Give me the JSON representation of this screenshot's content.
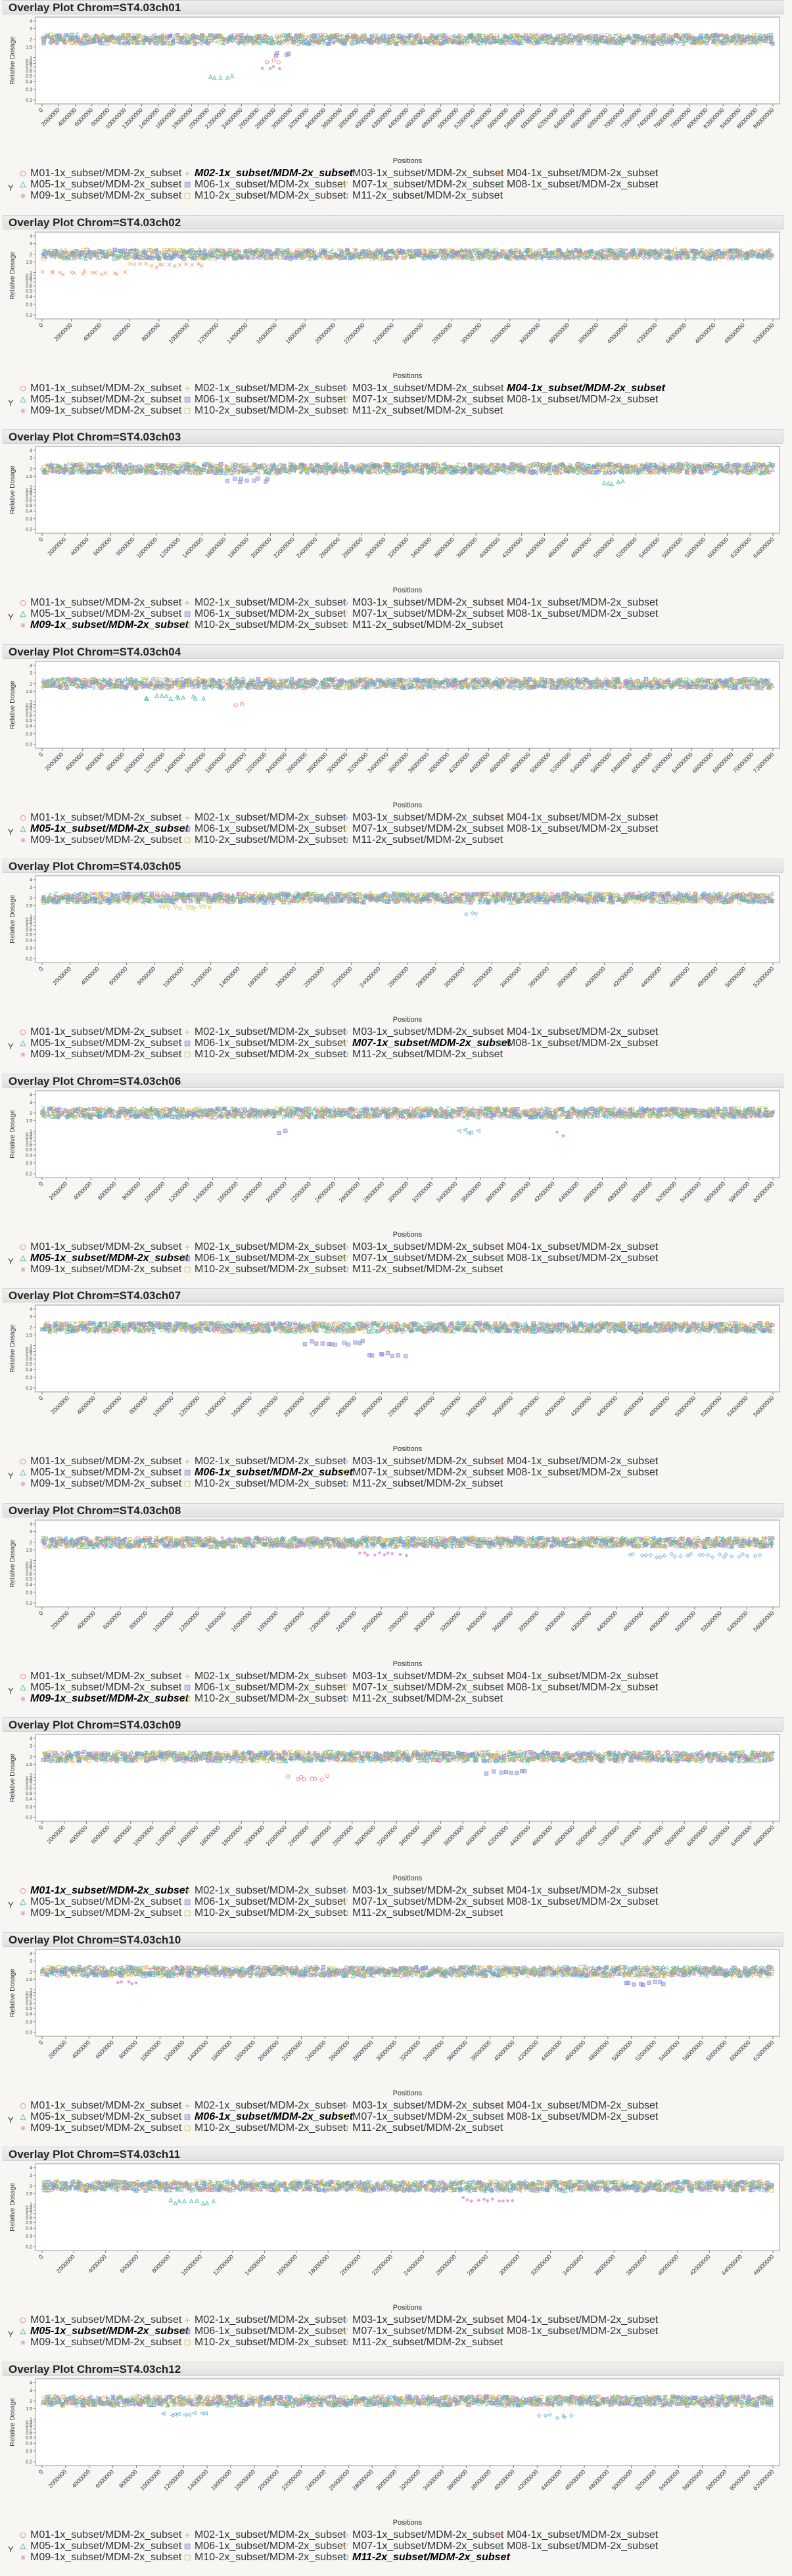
{
  "report": {
    "legend_y_label": "Y",
    "x_axis_label": "Positions",
    "y_axis_label": "Relative Dosage",
    "y_ticks": [
      "4",
      "3",
      "2",
      "1.5",
      "1",
      "0.9",
      "0.8",
      "0.7",
      "0.6",
      "0.5",
      "0.4",
      "0.3",
      "0.2"
    ]
  },
  "series": [
    {
      "name": "M01-1x_subset/MDM-2x_subset",
      "color": "#e87a7a",
      "marker": "circle"
    },
    {
      "name": "M02-1x_subset/MDM-2x_subset",
      "color": "#7fc86b",
      "marker": "plus"
    },
    {
      "name": "M03-1x_subset/MDM-2x_subset",
      "color": "#6fa7d8",
      "marker": "diamond"
    },
    {
      "name": "M04-1x_subset/MDM-2x_subset",
      "color": "#e8956a",
      "marker": "x"
    },
    {
      "name": "M05-1x_subset/MDM-2x_subset",
      "color": "#3fb6a6",
      "marker": "triangle"
    },
    {
      "name": "M06-1x_subset/MDM-2x_subset",
      "color": "#8a8fd6",
      "marker": "square"
    },
    {
      "name": "M07-1x_subset/MDM-2x_subset",
      "color": "#d7c54b",
      "marker": "tri-down"
    },
    {
      "name": "M08-1x_subset/MDM-2x_subset",
      "color": "#62bba0",
      "marker": "z"
    },
    {
      "name": "M09-1x_subset/MDM-2x_subset",
      "color": "#d98bd0",
      "marker": "star"
    },
    {
      "name": "M10-2x_subset/MDM-2x_subset",
      "color": "#c5c060",
      "marker": "square-open"
    },
    {
      "name": "M11-2x_subset/MDM-2x_subset",
      "color": "#5fa8d3",
      "marker": "tri-left"
    }
  ],
  "chart_data": [
    {
      "type": "scatter",
      "title": "Overlay Plot Chrom=ST4.03ch01",
      "xlabel": "Positions",
      "ylabel": "Relative Dosage",
      "y_scale": "log",
      "ylim": [
        0.2,
        4
      ],
      "xlim": [
        0,
        88000000
      ],
      "x_ticks": [
        "0",
        "2000000",
        "4000000",
        "6000000",
        "8000000",
        "10000000",
        "12000000",
        "14000000",
        "16000000",
        "18000000",
        "20000000",
        "22000000",
        "24000000",
        "26000000",
        "28000000",
        "30000000",
        "32000000",
        "34000000",
        "36000000",
        "38000000",
        "40000000",
        "42000000",
        "44000000",
        "46000000",
        "48000000",
        "50000000",
        "52000000",
        "54000000",
        "56000000",
        "58000000",
        "60000000",
        "62000000",
        "64000000",
        "66000000",
        "68000000",
        "70000000",
        "72000000",
        "74000000",
        "76000000",
        "78000000",
        "80000000",
        "82000000",
        "84000000",
        "86000000",
        "88000000"
      ],
      "highlighted_series": "M02-1x_subset/MDM-2x_subset",
      "typical_dosage": 2,
      "deviations": [
        {
          "series": "M05-1x_subset/MDM-2x_subset",
          "x_range": [
            20000000,
            23000000
          ],
          "y": 0.5
        },
        {
          "series": "M09-1x_subset/MDM-2x_subset",
          "x_range": [
            26000000,
            29000000
          ],
          "y": 0.7
        },
        {
          "series": "M01-1x_subset/MDM-2x_subset",
          "x_range": [
            27000000,
            29000000
          ],
          "y": 0.9
        },
        {
          "series": "M06-1x_subset/MDM-2x_subset",
          "x_range": [
            28000000,
            30000000
          ],
          "y": 1.1
        }
      ]
    },
    {
      "type": "scatter",
      "title": "Overlay Plot Chrom=ST4.03ch02",
      "xlabel": "Positions",
      "ylabel": "Relative Dosage",
      "y_scale": "log",
      "ylim": [
        0.2,
        4
      ],
      "xlim": [
        0,
        50000000
      ],
      "x_ticks": [
        "0",
        "2000000",
        "4000000",
        "6000000",
        "8000000",
        "10000000",
        "12000000",
        "14000000",
        "16000000",
        "18000000",
        "20000000",
        "22000000",
        "24000000",
        "26000000",
        "28000000",
        "30000000",
        "32000000",
        "34000000",
        "36000000",
        "38000000",
        "40000000",
        "42000000",
        "44000000",
        "46000000",
        "48000000",
        "50000000"
      ],
      "highlighted_series": "M04-1x_subset/MDM-2x_subset",
      "typical_dosage": 2,
      "deviations": [
        {
          "series": "M04-1x_subset/MDM-2x_subset",
          "x_range": [
            0,
            6000000
          ],
          "y": 1.0
        },
        {
          "series": "M04-1x_subset/MDM-2x_subset",
          "x_range": [
            6000000,
            11000000
          ],
          "y": 1.3
        }
      ]
    },
    {
      "type": "scatter",
      "title": "Overlay Plot Chrom=ST4.03ch03",
      "xlabel": "Positions",
      "ylabel": "Relative Dosage",
      "y_scale": "log",
      "ylim": [
        0.2,
        4
      ],
      "xlim": [
        0,
        64000000
      ],
      "x_ticks": [
        "0",
        "2000000",
        "4000000",
        "6000000",
        "8000000",
        "10000000",
        "12000000",
        "14000000",
        "16000000",
        "18000000",
        "20000000",
        "22000000",
        "24000000",
        "26000000",
        "28000000",
        "30000000",
        "32000000",
        "34000000",
        "36000000",
        "38000000",
        "40000000",
        "42000000",
        "44000000",
        "46000000",
        "48000000",
        "50000000",
        "52000000",
        "54000000",
        "56000000",
        "58000000",
        "60000000",
        "62000000",
        "64000000"
      ],
      "highlighted_series": "M09-1x_subset/MDM-2x_subset",
      "typical_dosage": 2,
      "deviations": [
        {
          "series": "M06-1x_subset/MDM-2x_subset",
          "x_range": [
            16000000,
            20000000
          ],
          "y": 1.3
        },
        {
          "series": "M05-1x_subset/MDM-2x_subset",
          "x_range": [
            49000000,
            51000000
          ],
          "y": 1.2
        }
      ]
    },
    {
      "type": "scatter",
      "title": "Overlay Plot Chrom=ST4.03ch04",
      "xlabel": "Positions",
      "ylabel": "Relative Dosage",
      "y_scale": "log",
      "ylim": [
        0.2,
        4
      ],
      "xlim": [
        0,
        72000000
      ],
      "x_ticks": [
        "0",
        "2000000",
        "4000000",
        "6000000",
        "8000000",
        "10000000",
        "12000000",
        "14000000",
        "16000000",
        "18000000",
        "20000000",
        "22000000",
        "24000000",
        "26000000",
        "28000000",
        "30000000",
        "32000000",
        "34000000",
        "36000000",
        "38000000",
        "40000000",
        "42000000",
        "44000000",
        "46000000",
        "48000000",
        "50000000",
        "52000000",
        "54000000",
        "56000000",
        "58000000",
        "60000000",
        "62000000",
        "64000000",
        "66000000",
        "68000000",
        "70000000",
        "72000000"
      ],
      "highlighted_series": "M05-1x_subset/MDM-2x_subset",
      "typical_dosage": 2,
      "deviations": [
        {
          "series": "M05-1x_subset/MDM-2x_subset",
          "x_range": [
            10000000,
            16000000
          ],
          "y": 1.2
        },
        {
          "series": "M01-1x_subset/MDM-2x_subset",
          "x_range": [
            19000000,
            20000000
          ],
          "y": 0.9
        }
      ]
    },
    {
      "type": "scatter",
      "title": "Overlay Plot Chrom=ST4.03ch05",
      "xlabel": "Positions",
      "ylabel": "Relative Dosage",
      "y_scale": "log",
      "ylim": [
        0.2,
        4
      ],
      "xlim": [
        0,
        52000000
      ],
      "x_ticks": [
        "0",
        "2000000",
        "4000000",
        "6000000",
        "8000000",
        "10000000",
        "12000000",
        "14000000",
        "16000000",
        "18000000",
        "20000000",
        "22000000",
        "24000000",
        "26000000",
        "28000000",
        "30000000",
        "32000000",
        "34000000",
        "36000000",
        "38000000",
        "40000000",
        "42000000",
        "44000000",
        "46000000",
        "48000000",
        "50000000",
        "52000000"
      ],
      "highlighted_series": "M07-1x_subset/MDM-2x_subset",
      "typical_dosage": 2,
      "deviations": [
        {
          "series": "M07-1x_subset/MDM-2x_subset",
          "x_range": [
            8000000,
            12000000
          ],
          "y": 1.4
        },
        {
          "series": "M03-1x_subset/MDM-2x_subset",
          "x_range": [
            30000000,
            31000000
          ],
          "y": 1.1
        }
      ]
    },
    {
      "type": "scatter",
      "title": "Overlay Plot Chrom=ST4.03ch06",
      "xlabel": "Positions",
      "ylabel": "Relative Dosage",
      "y_scale": "log",
      "ylim": [
        0.2,
        4
      ],
      "xlim": [
        0,
        60000000
      ],
      "x_ticks": [
        "0",
        "2000000",
        "4000000",
        "6000000",
        "8000000",
        "10000000",
        "12000000",
        "14000000",
        "16000000",
        "18000000",
        "20000000",
        "22000000",
        "24000000",
        "26000000",
        "28000000",
        "30000000",
        "32000000",
        "34000000",
        "36000000",
        "38000000",
        "40000000",
        "42000000",
        "44000000",
        "46000000",
        "48000000",
        "50000000",
        "52000000",
        "54000000",
        "56000000",
        "58000000",
        "60000000"
      ],
      "highlighted_series": "M05-1x_subset/MDM-2x_subset",
      "typical_dosage": 2,
      "deviations": [
        {
          "series": "M06-1x_subset/MDM-2x_subset",
          "x_range": [
            19000000,
            20000000
          ],
          "y": 1.0
        },
        {
          "series": "M11-2x_subset/MDM-2x_subset",
          "x_range": [
            34000000,
            36000000
          ],
          "y": 1.0
        },
        {
          "series": "M09-1x_subset/MDM-2x_subset",
          "x_range": [
            42000000,
            43000000
          ],
          "y": 0.9
        }
      ]
    },
    {
      "type": "scatter",
      "title": "Overlay Plot Chrom=ST4.03ch07",
      "xlabel": "Positions",
      "ylabel": "Relative Dosage",
      "y_scale": "log",
      "ylim": [
        0.2,
        4
      ],
      "xlim": [
        0,
        56000000
      ],
      "x_ticks": [
        "0",
        "2000000",
        "4000000",
        "6000000",
        "8000000",
        "10000000",
        "12000000",
        "14000000",
        "16000000",
        "18000000",
        "20000000",
        "22000000",
        "24000000",
        "26000000",
        "28000000",
        "30000000",
        "32000000",
        "34000000",
        "36000000",
        "38000000",
        "40000000",
        "42000000",
        "44000000",
        "46000000",
        "48000000",
        "50000000",
        "52000000",
        "54000000",
        "56000000"
      ],
      "highlighted_series": "M06-1x_subset/MDM-2x_subset",
      "typical_dosage": 2,
      "deviations": [
        {
          "series": "M06-1x_subset/MDM-2x_subset",
          "x_range": [
            20000000,
            25000000
          ],
          "y": 1.1
        },
        {
          "series": "M06-1x_subset/MDM-2x_subset",
          "x_range": [
            25000000,
            28000000
          ],
          "y": 0.7
        }
      ]
    },
    {
      "type": "scatter",
      "title": "Overlay Plot Chrom=ST4.03ch08",
      "xlabel": "Positions",
      "ylabel": "Relative Dosage",
      "y_scale": "log",
      "ylim": [
        0.2,
        4
      ],
      "xlim": [
        0,
        56000000
      ],
      "x_ticks": [
        "0",
        "2000000",
        "4000000",
        "6000000",
        "8000000",
        "10000000",
        "12000000",
        "14000000",
        "16000000",
        "18000000",
        "20000000",
        "22000000",
        "24000000",
        "26000000",
        "28000000",
        "30000000",
        "32000000",
        "34000000",
        "36000000",
        "38000000",
        "40000000",
        "42000000",
        "44000000",
        "46000000",
        "48000000",
        "50000000",
        "52000000",
        "54000000",
        "56000000"
      ],
      "highlighted_series": "M09-1x_subset/MDM-2x_subset",
      "typical_dosage": 2,
      "deviations": [
        {
          "series": "M09-1x_subset/MDM-2x_subset",
          "x_range": [
            24000000,
            28000000
          ],
          "y": 1.3
        },
        {
          "series": "M03-1x_subset/MDM-2x_subset",
          "x_range": [
            45000000,
            55000000
          ],
          "y": 1.2
        }
      ]
    },
    {
      "type": "scatter",
      "title": "Overlay Plot Chrom=ST4.03ch09",
      "xlabel": "Positions",
      "ylabel": "Relative Dosage",
      "y_scale": "log",
      "ylim": [
        0.2,
        4
      ],
      "xlim": [
        0,
        66000000
      ],
      "x_ticks": [
        "0",
        "2000000",
        "4000000",
        "6000000",
        "8000000",
        "10000000",
        "12000000",
        "14000000",
        "16000000",
        "18000000",
        "20000000",
        "22000000",
        "24000000",
        "26000000",
        "28000000",
        "30000000",
        "32000000",
        "34000000",
        "36000000",
        "38000000",
        "40000000",
        "42000000",
        "44000000",
        "46000000",
        "48000000",
        "50000000",
        "52000000",
        "54000000",
        "56000000",
        "58000000",
        "60000000",
        "62000000",
        "64000000",
        "66000000"
      ],
      "highlighted_series": "M01-1x_subset/MDM-2x_subset",
      "typical_dosage": 2,
      "deviations": [
        {
          "series": "M01-1x_subset/MDM-2x_subset",
          "x_range": [
            22000000,
            26000000
          ],
          "y": 0.9
        },
        {
          "series": "M06-1x_subset/MDM-2x_subset",
          "x_range": [
            40000000,
            44000000
          ],
          "y": 1.1
        }
      ]
    },
    {
      "type": "scatter",
      "title": "Overlay Plot Chrom=ST4.03ch10",
      "xlabel": "Positions",
      "ylabel": "Relative Dosage",
      "y_scale": "log",
      "ylim": [
        0.2,
        4
      ],
      "xlim": [
        0,
        62000000
      ],
      "x_ticks": [
        "0",
        "2000000",
        "4000000",
        "6000000",
        "8000000",
        "10000000",
        "12000000",
        "14000000",
        "16000000",
        "18000000",
        "20000000",
        "22000000",
        "24000000",
        "26000000",
        "28000000",
        "30000000",
        "32000000",
        "34000000",
        "36000000",
        "38000000",
        "40000000",
        "42000000",
        "44000000",
        "46000000",
        "48000000",
        "50000000",
        "52000000",
        "54000000",
        "56000000",
        "58000000",
        "60000000",
        "62000000"
      ],
      "highlighted_series": "M06-1x_subset/MDM-2x_subset",
      "typical_dosage": 2,
      "deviations": [
        {
          "series": "M09-1x_subset/MDM-2x_subset",
          "x_range": [
            6000000,
            8000000
          ],
          "y": 1.3
        },
        {
          "series": "M06-1x_subset/MDM-2x_subset",
          "x_range": [
            49000000,
            53000000
          ],
          "y": 1.3
        }
      ]
    },
    {
      "type": "scatter",
      "title": "Overlay Plot Chrom=ST4.03ch11",
      "xlabel": "Positions",
      "ylabel": "Relative Dosage",
      "y_scale": "log",
      "ylim": [
        0.2,
        4
      ],
      "xlim": [
        0,
        46000000
      ],
      "x_ticks": [
        "0",
        "2000000",
        "4000000",
        "6000000",
        "8000000",
        "10000000",
        "12000000",
        "14000000",
        "16000000",
        "18000000",
        "20000000",
        "22000000",
        "24000000",
        "26000000",
        "28000000",
        "30000000",
        "32000000",
        "34000000",
        "36000000",
        "38000000",
        "40000000",
        "42000000",
        "44000000",
        "46000000"
      ],
      "highlighted_series": "M05-1x_subset/MDM-2x_subset",
      "typical_dosage": 2,
      "deviations": [
        {
          "series": "M05-1x_subset/MDM-2x_subset",
          "x_range": [
            8000000,
            11000000
          ],
          "y": 1.1
        },
        {
          "series": "M09-1x_subset/MDM-2x_subset",
          "x_range": [
            26000000,
            30000000
          ],
          "y": 1.2
        }
      ]
    },
    {
      "type": "scatter",
      "title": "Overlay Plot Chrom=ST4.03ch12",
      "xlabel": "Positions",
      "ylabel": "Relative Dosage",
      "y_scale": "log",
      "ylim": [
        0.2,
        4
      ],
      "xlim": [
        0,
        62000000
      ],
      "x_ticks": [
        "0",
        "2000000",
        "4000000",
        "6000000",
        "8000000",
        "10000000",
        "12000000",
        "14000000",
        "16000000",
        "18000000",
        "20000000",
        "22000000",
        "24000000",
        "26000000",
        "28000000",
        "30000000",
        "32000000",
        "34000000",
        "36000000",
        "38000000",
        "40000000",
        "42000000",
        "44000000",
        "46000000",
        "48000000",
        "50000000",
        "52000000",
        "54000000",
        "56000000",
        "58000000",
        "60000000",
        "62000000"
      ],
      "highlighted_series": "M11-2x_subset/MDM-2x_subset",
      "typical_dosage": 2,
      "deviations": [
        {
          "series": "M11-2x_subset/MDM-2x_subset",
          "x_range": [
            10000000,
            14000000
          ],
          "y": 1.2
        },
        {
          "series": "M03-1x_subset/MDM-2x_subset",
          "x_range": [
            42000000,
            45000000
          ],
          "y": 1.1
        }
      ]
    }
  ]
}
